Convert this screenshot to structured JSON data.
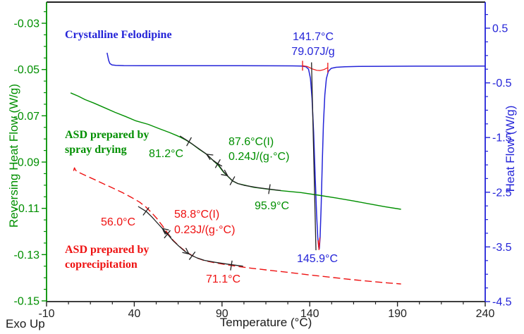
{
  "palette": {
    "green": "#008f00",
    "red": "#ee1111",
    "blue": "#2424d8",
    "black": "#222222"
  },
  "footer": {
    "exo_up": "Exo Up"
  },
  "chart_data": {
    "type": "line",
    "description": "DSC thermogram comparing crystalline felodipine with amorphous solid dispersions",
    "x_axis": {
      "label": "Temperature (°C)",
      "range": [
        -10,
        240
      ],
      "major_ticks": [
        "-10",
        "40",
        "90",
        "140",
        "190",
        "240"
      ],
      "minor_step": 12.5
    },
    "y_left_axis": {
      "label": "Reversing Heat Flow (W/g)",
      "major_ticks": [
        "-0.03",
        "-0.05",
        "-0.07",
        "-0.09",
        "-0.11",
        "-0.13",
        "-0.15"
      ],
      "minor_step": 0.005
    },
    "y_right_axis": {
      "label": "Heat Flow (W/g)",
      "major_ticks": [
        "0.5",
        "-0.5",
        "-1.5",
        "-2.5",
        "-3.5",
        "-4.5"
      ],
      "minor_step": 0.25
    },
    "series": [
      {
        "name": "crystalline-felodipine",
        "axis": "right",
        "color": "blue",
        "style": "solid",
        "width": 1.5,
        "points": [
          [
            24.5,
            0.05
          ],
          [
            24.9,
            -0.01
          ],
          [
            25.4,
            -0.09
          ],
          [
            26.1,
            -0.145
          ],
          [
            27.3,
            -0.172
          ],
          [
            29.5,
            -0.181
          ],
          [
            34,
            -0.184
          ],
          [
            45,
            -0.185
          ],
          [
            60,
            -0.186
          ],
          [
            80,
            -0.186
          ],
          [
            100,
            -0.187
          ],
          [
            118,
            -0.188
          ],
          [
            130,
            -0.189
          ],
          [
            135.5,
            -0.193
          ],
          [
            137.8,
            -0.205
          ],
          [
            139.3,
            -0.25
          ],
          [
            140.4,
            -0.42
          ],
          [
            141.3,
            -0.78
          ],
          [
            142.2,
            -1.4
          ],
          [
            143.1,
            -2.2
          ],
          [
            143.9,
            -2.9
          ],
          [
            144.6,
            -3.33
          ],
          [
            145.1,
            -3.5
          ],
          [
            145.45,
            -3.53
          ],
          [
            145.9,
            -3.32
          ],
          [
            146.5,
            -2.75
          ],
          [
            147.1,
            -2.0
          ],
          [
            147.8,
            -1.25
          ],
          [
            148.6,
            -0.72
          ],
          [
            149.5,
            -0.42
          ],
          [
            150.6,
            -0.29
          ],
          [
            152.2,
            -0.235
          ],
          [
            155,
            -0.215
          ],
          [
            160,
            -0.205
          ],
          [
            168,
            -0.2
          ],
          [
            180,
            -0.197
          ],
          [
            200,
            -0.195
          ],
          [
            220,
            -0.194
          ],
          [
            240,
            -0.193
          ]
        ]
      },
      {
        "name": "asd-spray-drying",
        "axis": "left",
        "color": "green",
        "style": "solid",
        "width": 1.4,
        "points": [
          [
            3.7,
            -0.0601
          ],
          [
            8,
            -0.0615
          ],
          [
            12,
            -0.063
          ],
          [
            17,
            -0.0645
          ],
          [
            23,
            -0.0665
          ],
          [
            29,
            -0.0685
          ],
          [
            35,
            -0.0703
          ],
          [
            41,
            -0.0722
          ],
          [
            48,
            -0.0737
          ],
          [
            54,
            -0.0755
          ],
          [
            60,
            -0.0772
          ],
          [
            65,
            -0.0788
          ],
          [
            69,
            -0.0803
          ],
          [
            73,
            -0.0822
          ],
          [
            77,
            -0.0845
          ],
          [
            81,
            -0.0865
          ],
          [
            84.5,
            -0.089
          ],
          [
            88,
            -0.0915
          ],
          [
            91,
            -0.0945
          ],
          [
            93.5,
            -0.0963
          ],
          [
            96,
            -0.0982
          ],
          [
            99,
            -0.0993
          ],
          [
            103,
            -0.1
          ],
          [
            108,
            -0.1009
          ],
          [
            115,
            -0.1016
          ],
          [
            124,
            -0.1024
          ],
          [
            135,
            -0.1032
          ],
          [
            145,
            -0.1043
          ],
          [
            155,
            -0.1055
          ],
          [
            165,
            -0.1068
          ],
          [
            175,
            -0.1082
          ],
          [
            183,
            -0.1093
          ],
          [
            192,
            -0.1104
          ]
        ]
      },
      {
        "name": "asd-coprecipitation",
        "axis": "left",
        "color": "red",
        "style": "dashed",
        "width": 1.4,
        "points": [
          [
            5.4,
            -0.0938
          ],
          [
            5.9,
            -0.0925
          ],
          [
            6.6,
            -0.0936
          ],
          [
            9,
            -0.0947
          ],
          [
            13,
            -0.0961
          ],
          [
            18,
            -0.0978
          ],
          [
            23,
            -0.0996
          ],
          [
            28,
            -0.1013
          ],
          [
            33,
            -0.1031
          ],
          [
            38,
            -0.1051
          ],
          [
            43,
            -0.1073
          ],
          [
            46.7,
            -0.1095
          ],
          [
            50,
            -0.112
          ],
          [
            53,
            -0.1145
          ],
          [
            56,
            -0.1175
          ],
          [
            59,
            -0.1207
          ],
          [
            62,
            -0.1237
          ],
          [
            65.5,
            -0.1263
          ],
          [
            69,
            -0.1285
          ],
          [
            72.5,
            -0.1302
          ],
          [
            76,
            -0.1315
          ],
          [
            80,
            -0.1326
          ],
          [
            85,
            -0.1334
          ],
          [
            91,
            -0.1342
          ],
          [
            98,
            -0.135
          ],
          [
            106,
            -0.1358
          ],
          [
            116,
            -0.1367
          ],
          [
            128,
            -0.1377
          ],
          [
            140,
            -0.1388
          ],
          [
            152,
            -0.1398
          ],
          [
            164,
            -0.1408
          ],
          [
            175,
            -0.1416
          ],
          [
            184,
            -0.1422
          ],
          [
            192,
            -0.1427
          ]
        ]
      },
      {
        "name": "melt-integration-baseline",
        "axis": "right",
        "color": "red",
        "style": "solid",
        "width": 1.2,
        "points": [
          [
            135.9,
            -0.186
          ],
          [
            138.5,
            -0.2
          ],
          [
            141.5,
            -0.245
          ],
          [
            144,
            -0.27
          ],
          [
            146,
            -0.275
          ],
          [
            148,
            -0.258
          ],
          [
            149.5,
            -0.235
          ],
          [
            150.3,
            -0.222
          ]
        ]
      },
      {
        "name": "melt-onset-tangent",
        "axis": "right",
        "color": "black",
        "style": "solid",
        "width": 1.3,
        "points": [
          [
            141.0,
            -0.125
          ],
          [
            143.55,
            -3.56
          ]
        ]
      },
      {
        "name": "spray-tg-fit",
        "axis": "left",
        "color": "black",
        "style": "solid",
        "width": 1.3,
        "points": [
          [
            66,
            -0.0787
          ],
          [
            71.2,
            -0.0812
          ],
          [
            76,
            -0.0838
          ],
          [
            81.2,
            -0.0866
          ],
          [
            84.5,
            -0.089
          ],
          [
            87.6,
            -0.0907
          ],
          [
            91,
            -0.0943
          ],
          [
            93.5,
            -0.0962
          ],
          [
            96,
            -0.0981
          ],
          [
            99,
            -0.0993
          ],
          [
            103,
            -0.1001
          ],
          [
            110,
            -0.101
          ],
          [
            117,
            -0.1017
          ],
          [
            123.5,
            -0.1023
          ]
        ]
      },
      {
        "name": "coprec-tg-fit",
        "axis": "left",
        "color": "black",
        "style": "solid",
        "width": 1.3,
        "points": [
          [
            42.2,
            -0.1092
          ],
          [
            46.7,
            -0.1113
          ],
          [
            50,
            -0.1137
          ],
          [
            53,
            -0.1162
          ],
          [
            56,
            -0.1187
          ],
          [
            58.8,
            -0.121
          ],
          [
            62,
            -0.1239
          ],
          [
            65.5,
            -0.1264
          ],
          [
            69,
            -0.1287
          ],
          [
            72.5,
            -0.1303
          ],
          [
            76,
            -0.1315
          ],
          [
            80,
            -0.1325
          ],
          [
            86,
            -0.1333
          ],
          [
            93,
            -0.1341
          ],
          [
            102,
            -0.135
          ]
        ]
      },
      {
        "name": "peak-tip-highlight",
        "axis": "right",
        "color": "red",
        "style": "solid",
        "width": 1.3,
        "points": [
          [
            144.8,
            -3.38
          ],
          [
            145.25,
            -3.55
          ],
          [
            145.75,
            -3.33
          ]
        ]
      }
    ],
    "markers": [
      {
        "shape": "tick",
        "axis": "left",
        "t": 71.2,
        "v": -0.0812,
        "angle": 119,
        "color": "black"
      },
      {
        "shape": "arrow",
        "axis": "left",
        "t": 81.2,
        "v": -0.0866,
        "angle": 212,
        "color": "black"
      },
      {
        "shape": "plus",
        "axis": "left",
        "t": 87.6,
        "v": -0.0907,
        "angle": 30,
        "color": "black"
      },
      {
        "shape": "arrow",
        "axis": "left",
        "t": 93.2,
        "v": -0.0959,
        "angle": 36,
        "color": "black"
      },
      {
        "shape": "tick",
        "axis": "left",
        "t": 95.9,
        "v": -0.0981,
        "angle": 119,
        "color": "black"
      },
      {
        "shape": "tick",
        "axis": "left",
        "t": 117,
        "v": -0.1017,
        "angle": 99,
        "color": "black"
      },
      {
        "shape": "tick",
        "axis": "left",
        "t": 46.7,
        "v": -0.1113,
        "angle": 127,
        "color": "black"
      },
      {
        "shape": "arrow",
        "axis": "left",
        "t": 56.0,
        "v": -0.1187,
        "angle": 218,
        "color": "black"
      },
      {
        "shape": "plus",
        "axis": "left",
        "t": 58.8,
        "v": -0.1212,
        "angle": 38,
        "color": "black"
      },
      {
        "shape": "arrow",
        "axis": "left",
        "t": 71.1,
        "v": -0.1297,
        "angle": 38,
        "color": "black"
      },
      {
        "shape": "tick",
        "axis": "left",
        "t": 73.0,
        "v": -0.1305,
        "angle": 127,
        "color": "black"
      },
      {
        "shape": "tick",
        "axis": "left",
        "t": 95.3,
        "v": -0.1347,
        "angle": 99,
        "color": "black"
      },
      {
        "shape": "tick",
        "axis": "right",
        "t": 135.9,
        "v": -0.186,
        "angle": 90,
        "color": "red"
      },
      {
        "shape": "tick",
        "axis": "right",
        "t": 150.3,
        "v": -0.222,
        "angle": 90,
        "color": "red"
      }
    ],
    "annotations": {
      "crystalline_label": "Crystalline Felodipine",
      "melt_onset": "141.7°C",
      "melt_enthalpy": "79.07J/g",
      "melt_peak": "145.9°C",
      "spray_label_line1": "ASD prepared by",
      "spray_label_line2": "spray drying",
      "spray_onset": "81.2°C",
      "spray_mid": "87.6°C(I)",
      "spray_deltacp": "0.24J/(g·°C)",
      "spray_end": "95.9°C",
      "coprec_onset": "56.0°C",
      "coprec_mid": "58.8°C(I)",
      "coprec_deltacp": "0.23J/(g·°C)",
      "coprec_label_line1": "ASD prepared by",
      "coprec_label_line2": "coprecipitation",
      "coprec_end": "71.1°C"
    }
  }
}
